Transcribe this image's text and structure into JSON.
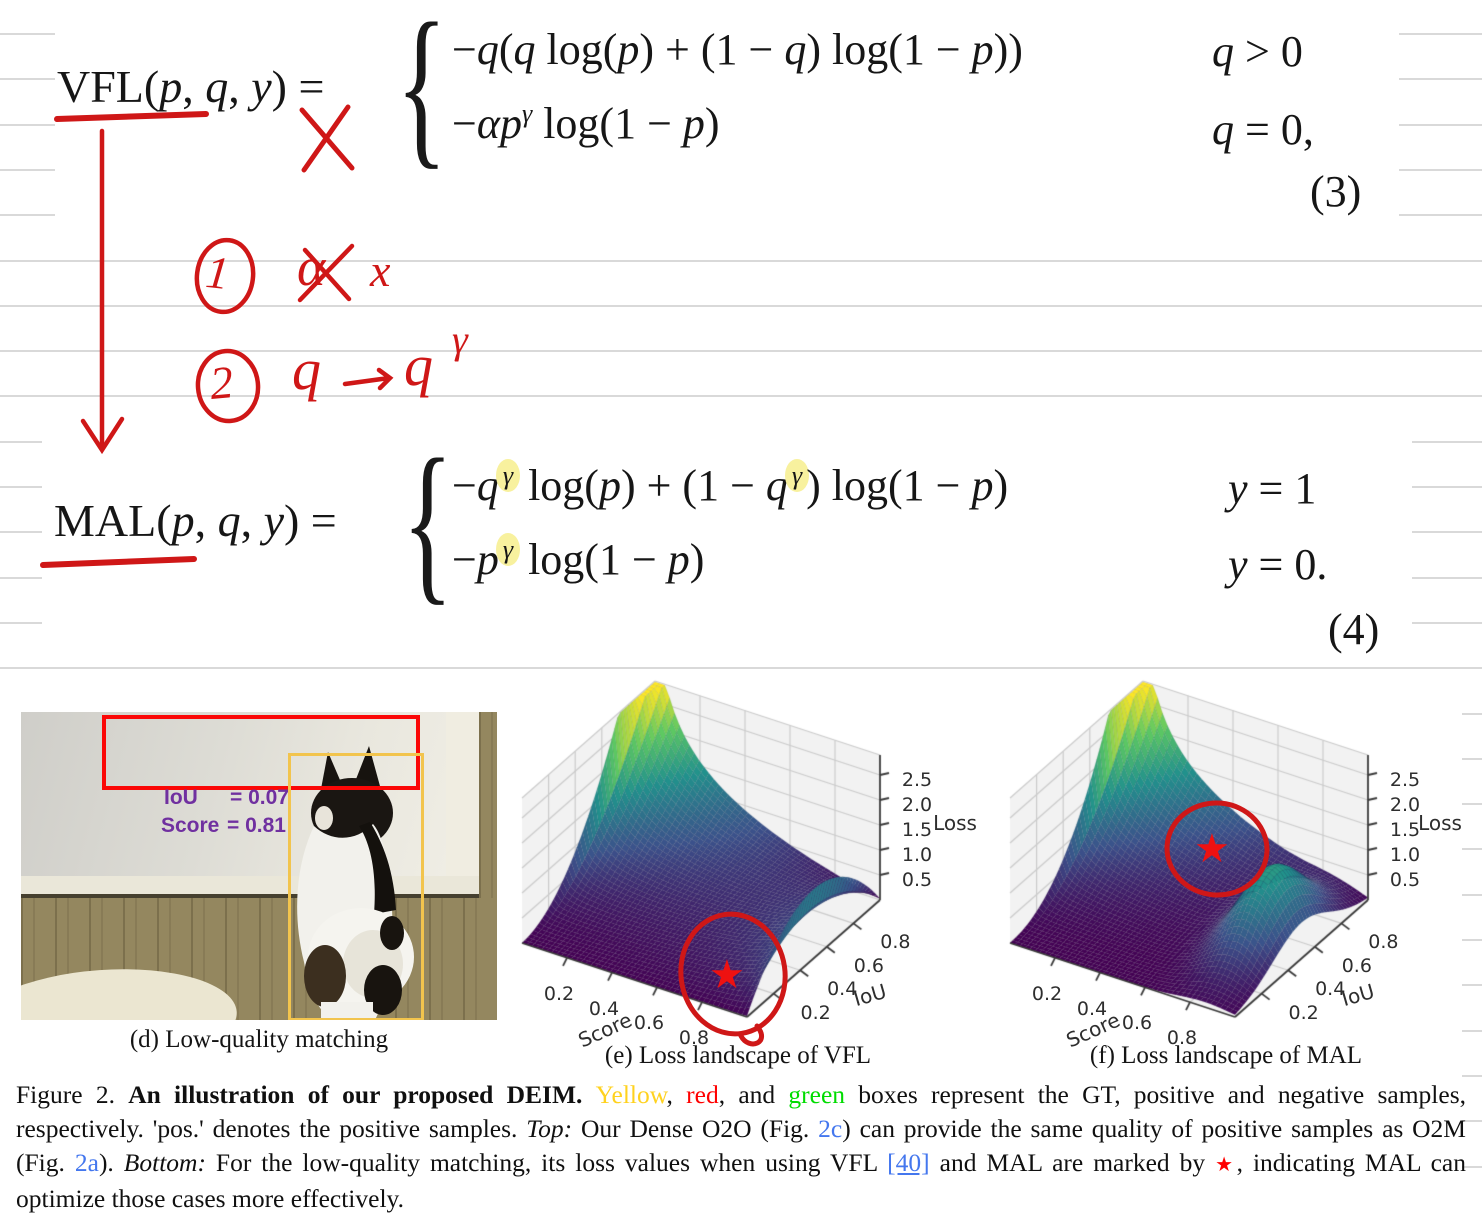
{
  "equations": {
    "eq3": {
      "lhs": [
        {
          "t": "VFL"
        },
        {
          "t": "("
        },
        {
          "t": "p",
          "i": 1
        },
        {
          "t": ", "
        },
        {
          "t": "q",
          "i": 1
        },
        {
          "t": ", "
        },
        {
          "t": "y",
          "i": 1
        },
        {
          "t": ") = "
        }
      ],
      "row1": [
        {
          "t": "−"
        },
        {
          "t": "q",
          "i": 1
        },
        {
          "t": "("
        },
        {
          "t": "q",
          "i": 1
        },
        {
          "t": " log("
        },
        {
          "t": "p",
          "i": 1
        },
        {
          "t": ") + (1 − "
        },
        {
          "t": "q",
          "i": 1
        },
        {
          "t": ") log(1 − "
        },
        {
          "t": "p",
          "i": 1
        },
        {
          "t": "))"
        }
      ],
      "cond1": [
        {
          "t": "q",
          "i": 1
        },
        {
          "t": " > 0"
        }
      ],
      "row2": [
        {
          "t": "−"
        },
        {
          "t": "α",
          "i": 1
        },
        {
          "t": "p",
          "i": 1
        },
        {
          "t": "γ",
          "i": 1,
          "sup": 1
        },
        {
          "t": " log(1 − "
        },
        {
          "t": "p",
          "i": 1
        },
        {
          "t": ")"
        }
      ],
      "cond2": [
        {
          "t": "q",
          "i": 1
        },
        {
          "t": " = 0,"
        }
      ],
      "number": "(3)"
    },
    "eq4": {
      "lhs": [
        {
          "t": "MAL"
        },
        {
          "t": "("
        },
        {
          "t": "p",
          "i": 1
        },
        {
          "t": ", "
        },
        {
          "t": "q",
          "i": 1
        },
        {
          "t": ", "
        },
        {
          "t": "y",
          "i": 1
        },
        {
          "t": ") = "
        }
      ],
      "row1": [
        {
          "t": "−"
        },
        {
          "t": "q",
          "i": 1
        },
        {
          "t": "γ",
          "i": 1,
          "sup": 1,
          "hl": 1
        },
        {
          "t": " log("
        },
        {
          "t": "p",
          "i": 1
        },
        {
          "t": ") + (1 − "
        },
        {
          "t": "q",
          "i": 1
        },
        {
          "t": "γ",
          "i": 1,
          "sup": 1,
          "hl": 1
        },
        {
          "t": ") log(1 − "
        },
        {
          "t": "p",
          "i": 1
        },
        {
          "t": ")"
        }
      ],
      "cond1": [
        {
          "t": "y",
          "i": 1
        },
        {
          "t": " = 1"
        }
      ],
      "row2": [
        {
          "t": "−"
        },
        {
          "t": "p",
          "i": 1
        },
        {
          "t": "γ",
          "i": 1,
          "sup": 1,
          "hl": 1
        },
        {
          "t": " log(1 − "
        },
        {
          "t": "p",
          "i": 1
        },
        {
          "t": ")"
        }
      ],
      "cond2": [
        {
          "t": "y",
          "i": 1
        },
        {
          "t": " = 0."
        }
      ],
      "number": "(4)"
    },
    "brace": "{"
  },
  "annotations": {
    "step1_num": "1",
    "alpha": "α",
    "cross_x": "x",
    "step2_num": "2",
    "q_before": "q",
    "q_after": "q",
    "gamma_sup": "γ"
  },
  "figure_d": {
    "iou_label": "IoU",
    "iou_value": "= 0.07",
    "score_label": "Score",
    "score_value": "= 0.81"
  },
  "figure_captions": {
    "d": "(d) Low-quality matching",
    "e": "(e) Loss landscape of VFL",
    "f": "(f) Loss landscape of MAL"
  },
  "chart_data": [
    {
      "type": "surface",
      "panel": "e",
      "title": "(e) Loss landscape of VFL",
      "xlabel": "Score",
      "ylabel": "IoU",
      "zlabel": "Loss",
      "x_ticks": [
        "0.2",
        "0.4",
        "0.6",
        "0.8"
      ],
      "y_ticks": [
        "0.2",
        "0.4",
        "0.6",
        "0.8"
      ],
      "z_ticks": [
        "0.5",
        "1.0",
        "1.5",
        "2.0",
        "2.5"
      ],
      "x_range": [
        0,
        1
      ],
      "y_range": [
        0,
        1
      ],
      "z_range": [
        0,
        2.9
      ],
      "surface": "vfl",
      "formula": "loss = −q(q·log(p) + (1−q)·log(1−p)), p = Score, q = IoU",
      "colormap": "viridis",
      "grid": true,
      "marker": {
        "symbol": "star",
        "color": "#ff0000",
        "score": 0.81,
        "iou": 0.07,
        "annotation": "hand-drawn red circle"
      }
    },
    {
      "type": "surface",
      "panel": "f",
      "title": "(f) Loss landscape of MAL",
      "xlabel": "Score",
      "ylabel": "IoU",
      "zlabel": "Loss",
      "x_ticks": [
        "0.2",
        "0.4",
        "0.6",
        "0.8"
      ],
      "y_ticks": [
        "0.2",
        "0.4",
        "0.6",
        "0.8"
      ],
      "z_ticks": [
        "0.5",
        "1.0",
        "1.5",
        "2.0",
        "2.5"
      ],
      "x_range": [
        0,
        1
      ],
      "y_range": [
        0,
        1
      ],
      "z_range": [
        0,
        2.9
      ],
      "surface": "mal",
      "formula": "loss = −(q^γ·log(p) + (1−q^γ)·log(1−p)), p = Score, q = IoU (Eq. 4)",
      "colormap": "viridis",
      "grid": true,
      "marker": {
        "symbol": "star",
        "color": "#ff0000",
        "score": 0.81,
        "iou": 0.07,
        "annotation": "hand-drawn red circle"
      }
    }
  ],
  "caption_runs": [
    {
      "t": "Figure 2. "
    },
    {
      "t": "An illustration of our proposed DEIM. ",
      "b": 1
    },
    {
      "t": "Yellow",
      "c": "yellow"
    },
    {
      "t": ", "
    },
    {
      "t": "red",
      "c": "red"
    },
    {
      "t": ", and "
    },
    {
      "t": "green",
      "c": "green"
    },
    {
      "t": " boxes represent the GT, positive and negative samples, respectively.  'pos.'  denotes the positive samples.  "
    },
    {
      "t": "Top:",
      "it": 1
    },
    {
      "t": " Our Dense O2O (Fig. "
    },
    {
      "t": "2c",
      "c": "link",
      "link": 1
    },
    {
      "t": ") can provide the same quality of positive samples as O2M (Fig. "
    },
    {
      "t": "2a",
      "c": "link",
      "link": 1
    },
    {
      "t": "). "
    },
    {
      "t": "Bottom:",
      "it": 1
    },
    {
      "t": " For the low-quality matching, its loss values when using VFL "
    },
    {
      "t": "[40]",
      "c": "link",
      "u": 1,
      "link": 1
    },
    {
      "t": " and MAL are marked by "
    },
    {
      "t": "★",
      "c": "red",
      "star": 1
    },
    {
      "t": ", indicating MAL can optimize those cases more effectively."
    }
  ],
  "colors": {
    "yellow": "#ffd21f",
    "red": "#ff0000",
    "green": "#00dc00",
    "link": "#4477ee",
    "ink_red": "#cf1717",
    "highlight_yellow": "#f8f19e",
    "gt_box_yellow": "#f2c44d",
    "pred_box_red": "#fb0706",
    "metric_purple": "#7030a0",
    "ruled_line_gray": "#d9d9d9"
  }
}
